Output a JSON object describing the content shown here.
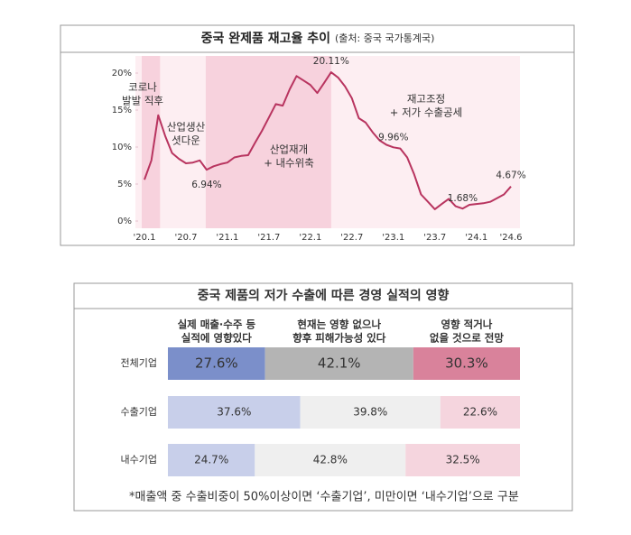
{
  "chart_data": [
    {
      "type": "line",
      "title": "중국 완제품 재고율 추이",
      "subtitle": "(출처: 중국 국가통계국)",
      "categories": [
        "'20.1",
        null,
        null,
        null,
        null,
        null,
        "'20.7",
        null,
        null,
        null,
        null,
        null,
        "'21.1",
        null,
        null,
        null,
        null,
        null,
        "'21.7",
        null,
        null,
        null,
        null,
        null,
        "'22.1",
        null,
        null,
        null,
        null,
        null,
        "'22.7",
        null,
        null,
        null,
        null,
        null,
        "'23.1",
        null,
        null,
        null,
        null,
        null,
        "'23.7",
        null,
        null,
        null,
        null,
        null,
        "'24.1",
        null,
        null,
        null,
        null,
        "'24.6"
      ],
      "series": [
        {
          "name": "완제품 재고율",
          "color": "#b8345f",
          "values": [
            5.6,
            8.2,
            14.3,
            11.5,
            9.2,
            8.4,
            7.8,
            7.9,
            8.2,
            6.94,
            7.4,
            7.7,
            7.9,
            8.6,
            8.8,
            8.9,
            10.6,
            12.2,
            14.0,
            15.8,
            15.6,
            17.8,
            19.6,
            19.0,
            18.4,
            17.3,
            18.7,
            20.11,
            19.4,
            18.2,
            16.6,
            13.9,
            13.3,
            12.0,
            10.9,
            10.3,
            9.96,
            9.8,
            8.6,
            6.3,
            3.6,
            2.6,
            1.6,
            2.3,
            3.0,
            2.0,
            1.68,
            2.2,
            2.3,
            2.4,
            2.6,
            3.1,
            3.6,
            4.67
          ],
          "value_labels": [
            null,
            null,
            null,
            null,
            null,
            null,
            null,
            null,
            null,
            "6.94%",
            null,
            null,
            null,
            null,
            null,
            null,
            null,
            null,
            null,
            null,
            null,
            null,
            null,
            null,
            null,
            null,
            null,
            "20.11%",
            null,
            null,
            null,
            null,
            null,
            null,
            null,
            null,
            "9.96%",
            null,
            null,
            null,
            null,
            null,
            null,
            null,
            null,
            null,
            "1.68%",
            null,
            null,
            null,
            null,
            null,
            null,
            "4.67%"
          ]
        }
      ],
      "ylim": [
        0,
        22
      ],
      "yticks": [
        {
          "value": 0,
          "label": "0%"
        },
        {
          "value": 5,
          "label": "5%"
        },
        {
          "value": 10,
          "label": "10%"
        },
        {
          "value": 15,
          "label": "15%"
        },
        {
          "value": 20,
          "label": "20%"
        }
      ],
      "bands": [
        {
          "from": 0,
          "to": 2
        },
        {
          "from": 9,
          "to": 27
        }
      ],
      "annotations": [
        [
          "코로나",
          "발발 직후"
        ],
        [
          "산업생산",
          "셧다운"
        ],
        [
          "산업재개",
          "+ 내수위축"
        ],
        [
          "재고조정",
          "+ 저가 수출공세"
        ]
      ]
    },
    {
      "type": "stacked-bar-horizontal",
      "title": "중국 제품의 저가 수출에 따른 경영 실적의 영향",
      "categories": [
        "전체기업",
        "수출기업",
        "내수기업"
      ],
      "series": [
        {
          "name": [
            "실제 매출·수주 등",
            "실적에 영향있다"
          ],
          "color": "#4a5fa8",
          "colors": [
            "#7b8fca",
            "#c8cfea",
            "#c8cfea"
          ],
          "values": [
            27.6,
            37.6,
            24.7
          ],
          "value_labels": [
            "27.6%",
            "37.6%",
            "24.7%"
          ]
        },
        {
          "name": [
            "현재는 영향 없으나",
            "향후 피해가능성 있다"
          ],
          "color": "#777777",
          "colors": [
            "#b4b4b4",
            "#efefef",
            "#efefef"
          ],
          "values": [
            42.1,
            39.8,
            42.8
          ],
          "value_labels": [
            "42.1%",
            "39.8%",
            "42.8%"
          ]
        },
        {
          "name": [
            "영향 적거나",
            "없을 것으로 전망"
          ],
          "color": "#c0506e",
          "colors": [
            "#d9829b",
            "#f5d5de",
            "#f5d5de"
          ],
          "values": [
            30.3,
            22.6,
            32.5
          ],
          "value_labels": [
            "30.3%",
            "22.6%",
            "32.5%"
          ]
        }
      ],
      "footnote": "*매출액 중 수출비중이 50%이상이면 ‘수출기업’, 미만이면 ‘내수기업’으로 구분"
    }
  ]
}
